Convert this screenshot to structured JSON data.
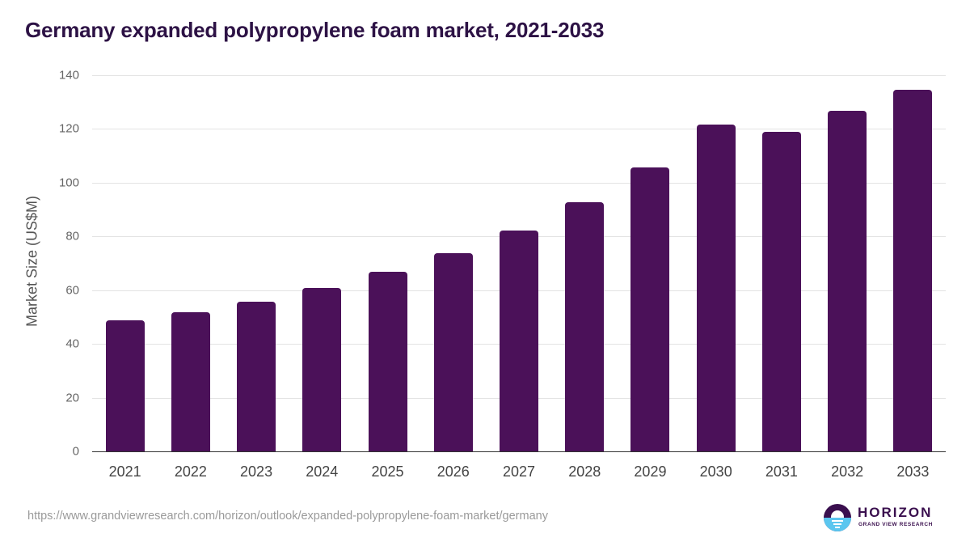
{
  "header": {
    "title": "Germany expanded polypropylene foam market, 2021-2033"
  },
  "chart_data": {
    "type": "bar",
    "title": "Germany expanded polypropylene foam market, 2021-2033",
    "xlabel": "",
    "ylabel": "Market Size (US$M)",
    "ylim": [
      0,
      140
    ],
    "yticks": [
      0,
      20,
      40,
      60,
      80,
      100,
      120,
      140
    ],
    "grid": true,
    "legend": null,
    "bar_color": "#4b1159",
    "categories": [
      "2021",
      "2022",
      "2023",
      "2024",
      "2025",
      "2026",
      "2027",
      "2028",
      "2029",
      "2030",
      "2031",
      "2032",
      "2033"
    ],
    "values": [
      48.8,
      51.8,
      55.7,
      60.8,
      66.8,
      73.8,
      82.2,
      92.7,
      105.7,
      121.6,
      118.9,
      126.8,
      134.6
    ]
  },
  "footer": {
    "source_url": "https://www.grandviewresearch.com/horizon/outlook/expanded-polypropylene-foam-market/germany",
    "logo_name": "HORIZON",
    "logo_sub": "GRAND VIEW RESEARCH"
  }
}
